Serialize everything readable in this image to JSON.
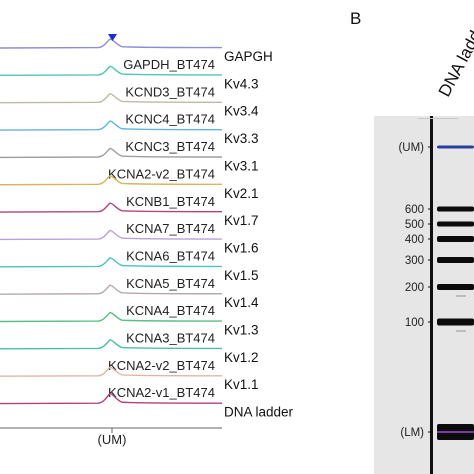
{
  "panel_b": {
    "letter": "B",
    "lane_title": "DNA ladder"
  },
  "traces": [
    {
      "sample": "GAPDH_BT474",
      "gene": "GAPGH",
      "color": "#8f8cd6"
    },
    {
      "sample": "KCND3_BT474",
      "gene": "Kv4.3",
      "color": "#4fc7b0"
    },
    {
      "sample": "KCNC4_BT474",
      "gene": "Kv3.4",
      "color": "#bfb9a8"
    },
    {
      "sample": "KCNC3_BT474",
      "gene": "Kv3.3",
      "color": "#5fb6dc"
    },
    {
      "sample": "KCNA2-v2_BT474",
      "gene": "Kv3.1",
      "color": "#9e9e9e"
    },
    {
      "sample": "KCNB1_BT474",
      "gene": "Kv2.1",
      "color": "#d6b562"
    },
    {
      "sample": "KCNA7_BT474",
      "gene": "Kv1.7",
      "color": "#b2457a"
    },
    {
      "sample": "KCNA6_BT474",
      "gene": "Kv1.6",
      "color": "#b7a3d9"
    },
    {
      "sample": "KCNA5_BT474",
      "gene": "Kv1.5",
      "color": "#49c4c0"
    },
    {
      "sample": "KCNA4_BT474",
      "gene": "Kv1.4",
      "color": "#b9a8ab"
    },
    {
      "sample": "KCNA3_BT474",
      "gene": "Kv1.3",
      "color": "#58bf86"
    },
    {
      "sample": "KCNA2-v2_BT474",
      "gene": "Kv1.2",
      "color": "#4cbfa3"
    },
    {
      "sample": "KCNA2-v1_BT474",
      "gene": "Kv1.1",
      "color": "#e0b7a6"
    },
    {
      "sample": "",
      "gene": "DNA ladder",
      "color": "#b3417e"
    }
  ],
  "x_axis_label": "(UM)",
  "um_marker_color": "#1f2bd9",
  "gel_markers": [
    "(UM)",
    "600",
    "500",
    "400",
    "300",
    "200",
    "100",
    "(LM)"
  ],
  "gel_colors": {
    "background": "#e6e6e6",
    "band": "#0b0b0b",
    "um_band": "#2a3e9c",
    "lm_band": "#7b3aa8"
  }
}
